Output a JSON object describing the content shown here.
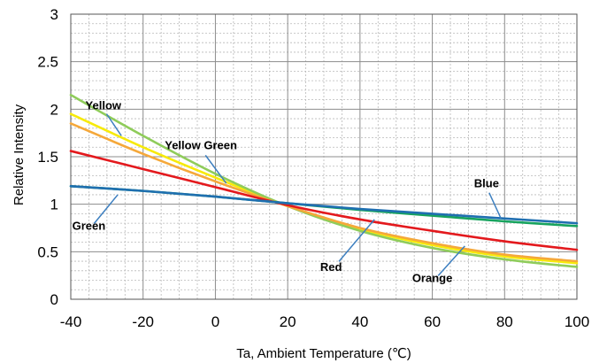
{
  "chart_data": {
    "type": "line",
    "title": "",
    "xlabel": "Ta, Ambient Temperature (℃)",
    "ylabel": "Relative Intensity",
    "xlim": [
      -40,
      100
    ],
    "ylim": [
      0,
      3
    ],
    "x_ticks": [
      -40,
      -20,
      0,
      20,
      40,
      60,
      80,
      100
    ],
    "x_tick_labels": [
      "-40",
      "-20",
      "0",
      "20",
      "40",
      "60",
      "80",
      "100"
    ],
    "y_ticks": [
      0,
      0.5,
      1,
      1.5,
      2,
      2.5,
      3
    ],
    "y_tick_labels": [
      "0",
      "0.5",
      "1",
      "1.5",
      "2",
      "2.5",
      "3"
    ],
    "grid": true,
    "legend": "none",
    "series": [
      {
        "name": "Yellow",
        "color": "#f7ea0a",
        "x": [
          -40,
          -20,
          0,
          20,
          40,
          60,
          80,
          100
        ],
        "y": [
          1.95,
          1.6,
          1.28,
          0.98,
          0.74,
          0.57,
          0.45,
          0.38
        ]
      },
      {
        "name": "Yellow Green",
        "color": "#8fcc5a",
        "x": [
          -40,
          -20,
          0,
          20,
          40,
          60,
          80,
          100
        ],
        "y": [
          2.15,
          1.72,
          1.32,
          0.98,
          0.72,
          0.54,
          0.42,
          0.34
        ]
      },
      {
        "name": "Orange",
        "color": "#f5a83a",
        "x": [
          -40,
          -20,
          0,
          20,
          40,
          60,
          80,
          100
        ],
        "y": [
          1.85,
          1.53,
          1.24,
          0.98,
          0.75,
          0.59,
          0.47,
          0.4
        ]
      },
      {
        "name": "Red",
        "color": "#e3191d",
        "x": [
          -40,
          -20,
          0,
          20,
          40,
          60,
          80,
          100
        ],
        "y": [
          1.56,
          1.37,
          1.18,
          0.99,
          0.84,
          0.72,
          0.61,
          0.52
        ]
      },
      {
        "name": "Green",
        "color": "#17a35e",
        "x": [
          -40,
          -20,
          0,
          20,
          40,
          60,
          80,
          100
        ],
        "y": [
          1.19,
          1.14,
          1.08,
          1.01,
          0.94,
          0.88,
          0.82,
          0.77
        ]
      },
      {
        "name": "Blue",
        "color": "#1f6fb0",
        "x": [
          -40,
          -20,
          0,
          20,
          40,
          60,
          80,
          100
        ],
        "y": [
          1.19,
          1.14,
          1.08,
          1.01,
          0.95,
          0.9,
          0.85,
          0.8
        ]
      }
    ],
    "annotations": [
      {
        "text": "Yellow",
        "text_at": [
          -31,
          2.0
        ],
        "point_at": [
          -26,
          1.72
        ]
      },
      {
        "text": "Yellow Green",
        "text_at": [
          -4,
          1.58
        ],
        "point_at": [
          3,
          1.22
        ]
      },
      {
        "text": "Green",
        "text_at": [
          -35,
          0.73
        ],
        "point_at": [
          -27,
          1.1
        ]
      },
      {
        "text": "Red",
        "text_at": [
          32,
          0.3
        ],
        "point_at": [
          44,
          0.84
        ]
      },
      {
        "text": "Orange",
        "text_at": [
          60,
          0.18
        ],
        "point_at": [
          69,
          0.56
        ]
      },
      {
        "text": "Blue",
        "text_at": [
          75,
          1.18
        ],
        "point_at": [
          79,
          0.85
        ]
      }
    ]
  }
}
